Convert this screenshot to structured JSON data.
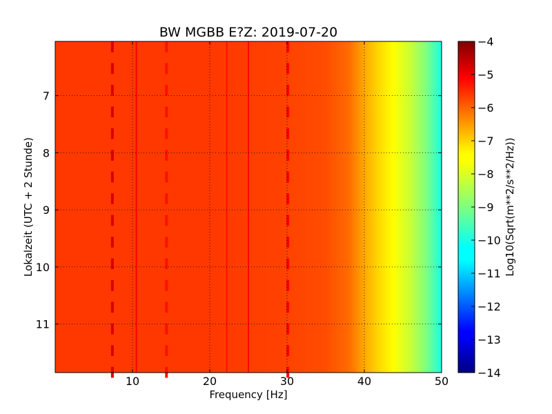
{
  "chart_data": {
    "type": "heatmap",
    "title": "BW MGBB E?Z: 2019-07-20",
    "xlabel": "Frequency [Hz]",
    "ylabel": "Lokalzeit (UTC + 2 Stunde)",
    "colorbar_label": "Log10(Sqrt(m**2/s**2/Hz))",
    "xlim": [
      0,
      50
    ],
    "ylim": [
      6.05,
      11.85
    ],
    "y_inverted": true,
    "x_ticks": [
      10,
      20,
      30,
      40,
      50
    ],
    "x_tick_labels": [
      "10",
      "20",
      "30",
      "40",
      "50"
    ],
    "y_ticks": [
      7,
      8,
      9,
      10,
      11
    ],
    "y_tick_labels": [
      "7",
      "8",
      "9",
      "10",
      "11"
    ],
    "color_range": [
      -14,
      -4
    ],
    "colorbar_ticks": [
      -4,
      -5,
      -6,
      -7,
      -8,
      -9,
      -10,
      -11,
      -12,
      -13,
      -14
    ],
    "colorbar_tick_labels": [
      "−4",
      "−5",
      "−6",
      "−7",
      "−8",
      "−9",
      "−10",
      "−11",
      "−12",
      "−13",
      "−14"
    ],
    "colormap": "jet",
    "grid": true,
    "frequency_profile": {
      "frequency": [
        0,
        5,
        10,
        20,
        30,
        35,
        38,
        40,
        42,
        44,
        46,
        48,
        50
      ],
      "value": [
        -5.8,
        -5.8,
        -5.8,
        -5.8,
        -5.9,
        -6.0,
        -6.3,
        -6.9,
        -7.4,
        -7.8,
        -8.3,
        -9.0,
        -10.0
      ]
    },
    "spectral_lines": [
      {
        "frequency": 7.4,
        "value": -4.9,
        "intermittent": true
      },
      {
        "frequency": 10.5,
        "value": -5.2,
        "intermittent": false
      },
      {
        "frequency": 14.4,
        "value": -5.4,
        "intermittent": true
      },
      {
        "frequency": 22.2,
        "value": -5.4,
        "intermittent": false
      },
      {
        "frequency": 25.0,
        "value": -5.3,
        "intermittent": false
      },
      {
        "frequency": 30.1,
        "value": -5.2,
        "intermittent": true
      }
    ]
  }
}
